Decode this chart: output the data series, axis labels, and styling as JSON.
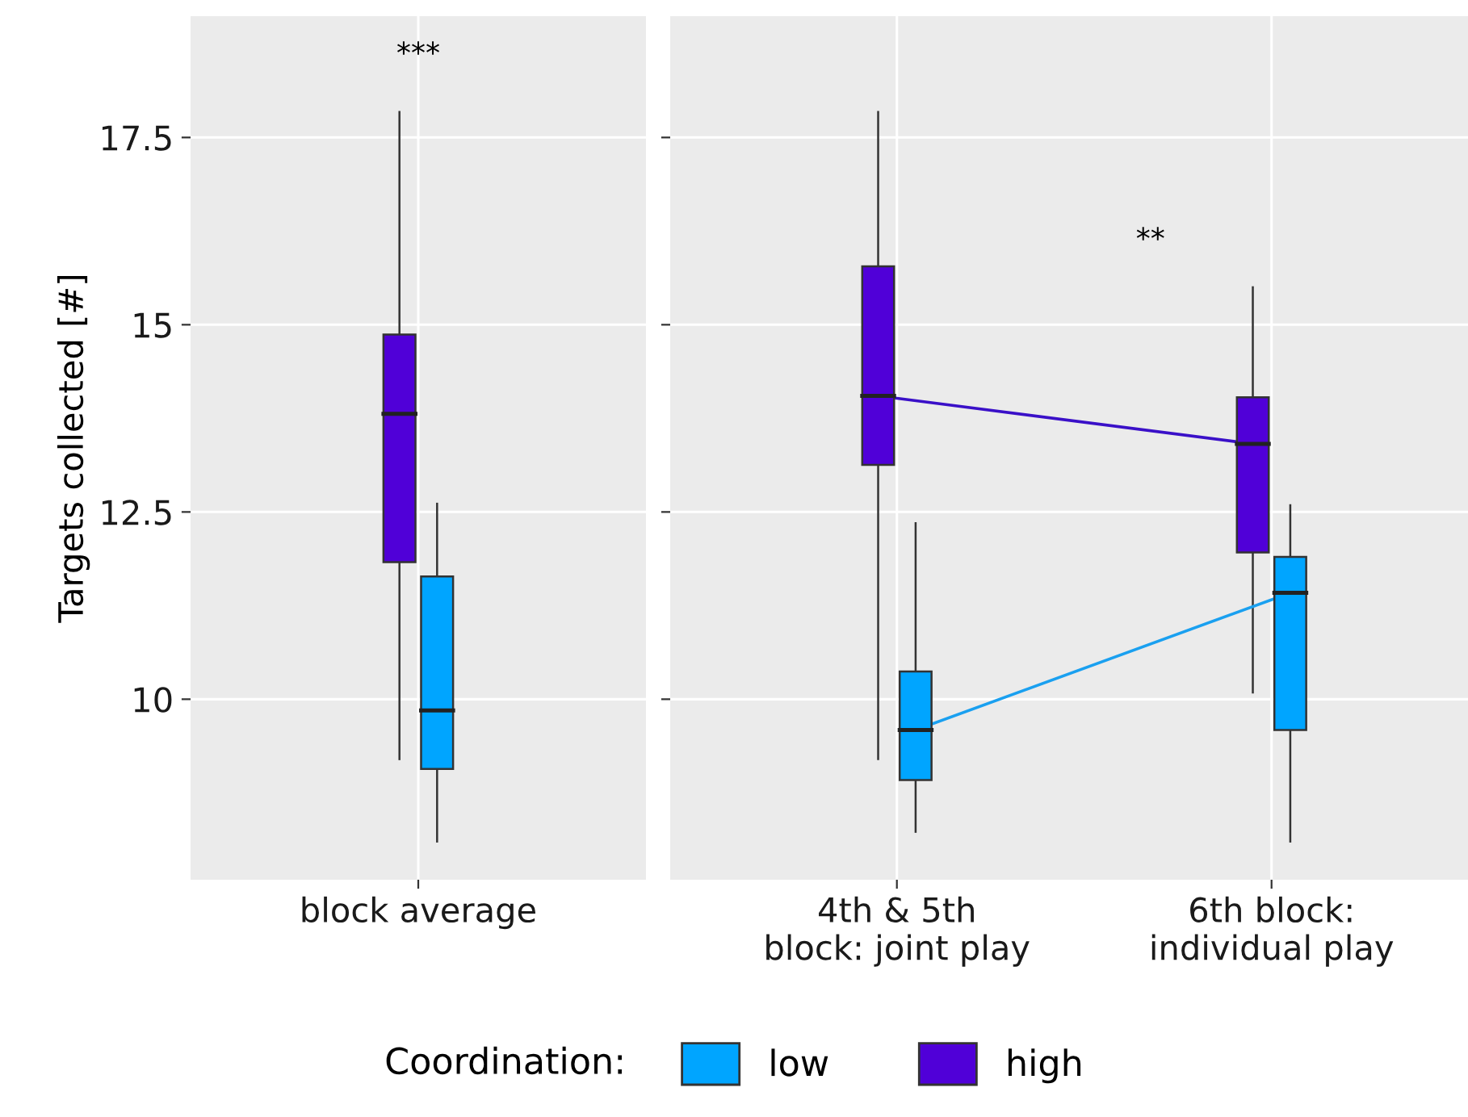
{
  "chart_data": [
    {
      "type": "box",
      "ylabel": "Targets collected [#]",
      "categories": [
        "block average"
      ],
      "ylim": [
        7.59,
        19.12
      ],
      "yticks": [
        10,
        12.5,
        15,
        17.5
      ],
      "grid": true,
      "legend": "bottom",
      "legend_title": "Coordination:",
      "annotations": [
        "***"
      ],
      "series": [
        {
          "name": "low",
          "color": "#00a5ff",
          "boxes": [
            {
              "low": 8.1,
              "q1": 9.07,
              "median": 9.85,
              "q3": 11.64,
              "high": 12.61
            }
          ]
        },
        {
          "name": "high",
          "color": "#5000d8",
          "boxes": [
            {
              "low": 9.2,
              "q1": 11.83,
              "median": 13.81,
              "q3": 14.87,
              "high": 17.84
            }
          ]
        }
      ]
    },
    {
      "type": "box",
      "categories": [
        "4th & 5th\nblock: joint play",
        "6th block:\nindividual play"
      ],
      "ylim": [
        7.59,
        19.12
      ],
      "yticks": [
        10,
        12.5,
        15,
        17.5
      ],
      "tick_labels": "x",
      "grid": true,
      "annotations": [
        "**"
      ],
      "series": [
        {
          "name": "low",
          "color": "#00a5ff",
          "boxes": [
            {
              "low": 8.23,
              "q1": 8.92,
              "median": 9.59,
              "q3": 10.37,
              "high": 12.35
            },
            {
              "low": 8.1,
              "q1": 9.59,
              "median": 11.42,
              "q3": 11.9,
              "high": 12.59
            }
          ]
        },
        {
          "name": "high",
          "color": "#5000d8",
          "boxes": [
            {
              "low": 9.2,
              "q1": 13.13,
              "median": 14.05,
              "q3": 15.78,
              "high": 17.84
            },
            {
              "low": 10.09,
              "q1": 11.96,
              "median": 13.41,
              "q3": 14.03,
              "high": 15.5
            }
          ]
        },
        {
          "type": "line",
          "color": "#1aa0f0",
          "values": [
            9.59,
            11.42
          ]
        },
        {
          "type": "line",
          "color": "#3a10c8",
          "values": [
            14.05,
            13.41
          ]
        }
      ]
    }
  ]
}
